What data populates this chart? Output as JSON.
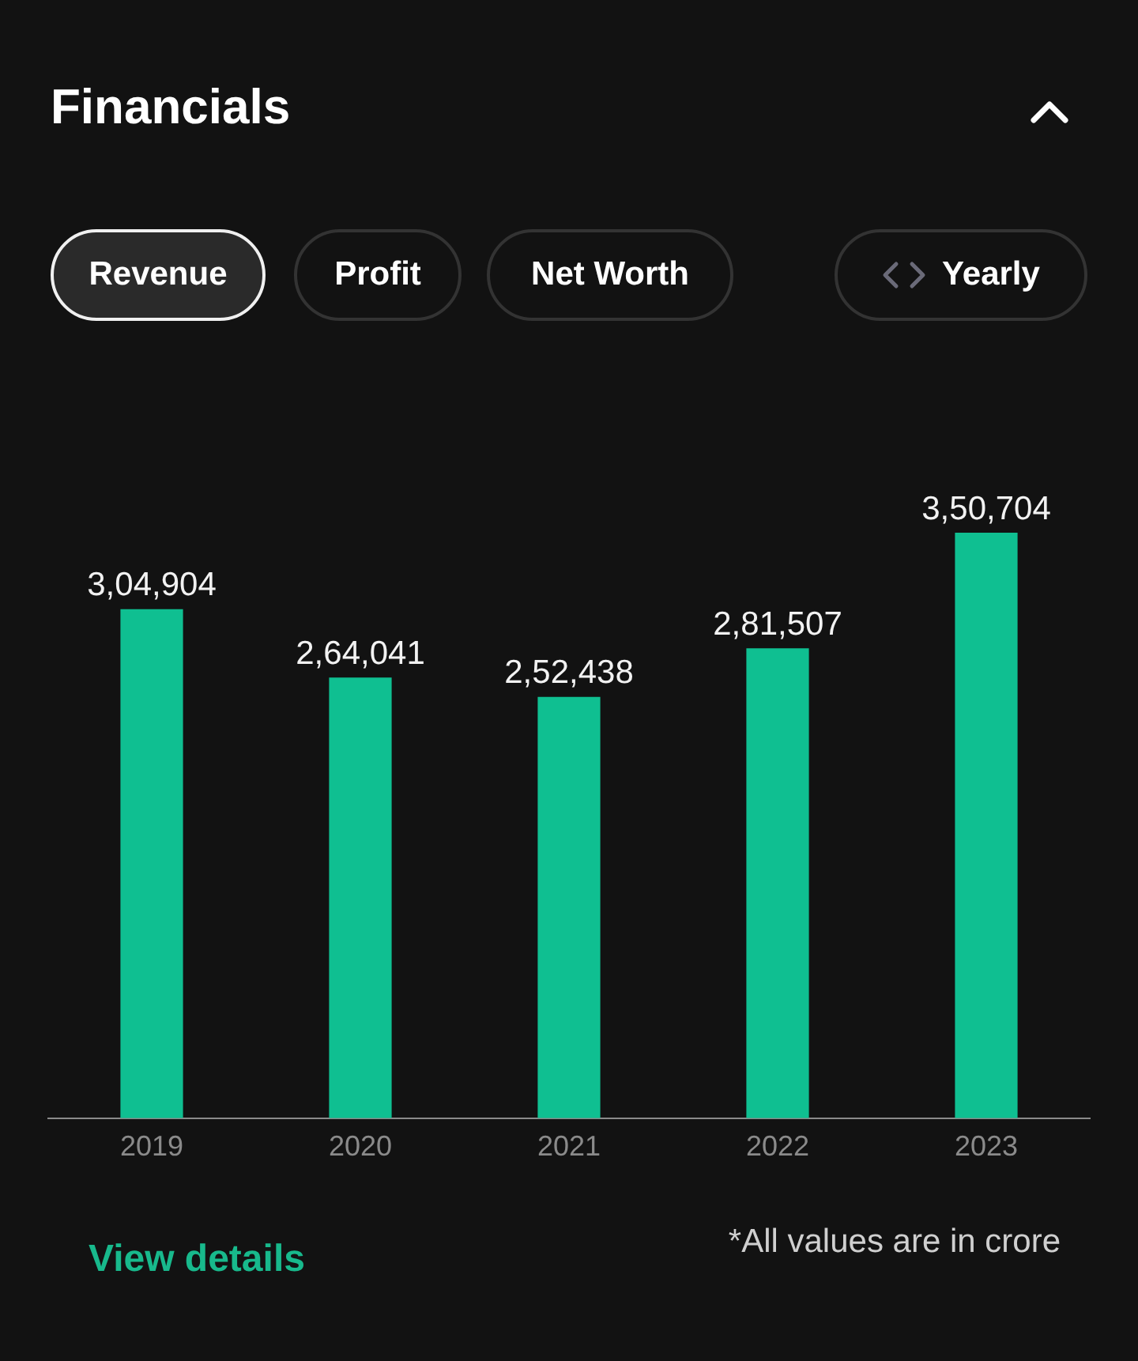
{
  "chart_data": {
    "type": "bar",
    "title": "Financials",
    "categories": [
      "2019",
      "2020",
      "2021",
      "2022",
      "2023"
    ],
    "values": [
      304904,
      264041,
      252438,
      281507,
      350704
    ],
    "value_labels": [
      "3,04,904",
      "2,64,041",
      "2,52,438",
      "2,81,507",
      "3,50,704"
    ],
    "color": "#0fbf91",
    "grid": false,
    "legend": false,
    "annotations": [
      "Revenue",
      "Profit",
      "Net Worth",
      "Yearly",
      "View details",
      "*All values are in crore"
    ]
  }
}
